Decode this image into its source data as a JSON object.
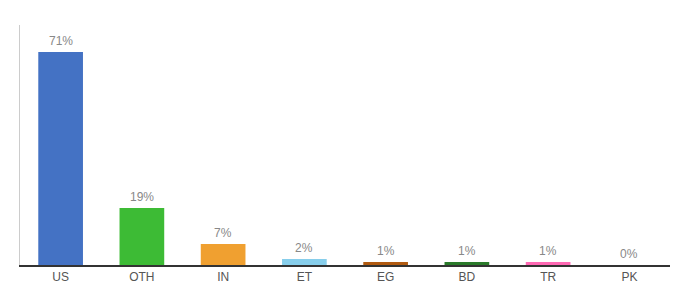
{
  "chart_data": {
    "type": "bar",
    "categories": [
      "US",
      "OTH",
      "IN",
      "ET",
      "EG",
      "BD",
      "TR",
      "PK"
    ],
    "values": [
      71,
      19,
      7,
      2,
      1,
      1,
      1,
      0
    ],
    "value_labels": [
      "71%",
      "19%",
      "7%",
      "2%",
      "1%",
      "1%",
      "1%",
      "0%"
    ],
    "colors": [
      "#4472c4",
      "#3dbb35",
      "#f0a030",
      "#87ceeb",
      "#b05a10",
      "#2a7a2a",
      "#ff69b4",
      "#aaaaaa"
    ],
    "ylim": [
      0,
      80
    ],
    "data_labels": true,
    "tick_labels": "x",
    "grid": false
  }
}
